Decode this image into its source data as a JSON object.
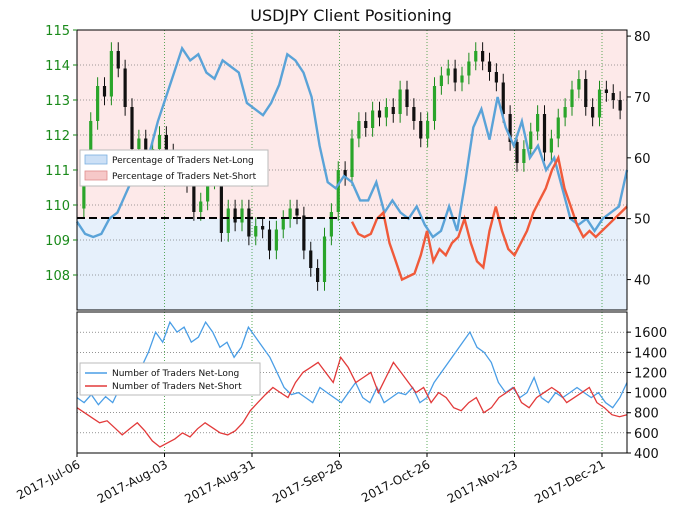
{
  "chart_data": [
    {
      "type": "line",
      "title": "USDJPY Client Positioning",
      "x_dates": [
        "2017-Jul-06",
        "2017-Aug-03",
        "2017-Aug-31",
        "2017-Sep-28",
        "2017-Oct-26",
        "2017-Nov-23",
        "2017-Dec-21"
      ],
      "y_left_ticks": [
        "108",
        "109",
        "110",
        "111",
        "112",
        "113",
        "114",
        "115"
      ],
      "y_left_range": [
        107,
        115
      ],
      "y_right_ticks": [
        "40",
        "50",
        "60",
        "70",
        "80"
      ],
      "y_right_range": [
        35,
        81
      ],
      "reference_line": 50,
      "legend": {
        "position": "center-left",
        "entries": [
          "Percentage of Traders Net-Long",
          "Percentage of Traders Net-Short"
        ]
      },
      "grid": true,
      "price_series": [
        109.9,
        111.2,
        112.4,
        113.4,
        113.1,
        114.4,
        113.9,
        112.8,
        111.6,
        111.9,
        111.1,
        111.6,
        112.0,
        111.5,
        110.8,
        110.9,
        110.6,
        109.8,
        110.1,
        110.7,
        110.8,
        109.2,
        109.9,
        109.5,
        109.9,
        109.1,
        109.4,
        109.3,
        108.7,
        109.3,
        109.6,
        109.9,
        109.7,
        108.7,
        108.2,
        107.8,
        109.1,
        109.8,
        111.0,
        110.8,
        111.9,
        112.4,
        112.2,
        112.7,
        112.5,
        112.8,
        112.6,
        113.3,
        112.8,
        112.4,
        111.9,
        112.4,
        113.4,
        113.7,
        113.9,
        113.5,
        113.7,
        114.1,
        114.4,
        114.1,
        113.8,
        113.5,
        112.6,
        111.8,
        111.2,
        111.6,
        112.1,
        112.6,
        111.5,
        111.9,
        112.5,
        112.8,
        113.3,
        113.6,
        112.8,
        112.5,
        113.3,
        113.2,
        113.0,
        112.7
      ],
      "net_long_pct": [
        49.5,
        47.5,
        47.0,
        47.5,
        50.0,
        51.0,
        54.0,
        57.0,
        58.0,
        61.0,
        66.0,
        70.0,
        74.0,
        78.0,
        76.0,
        77.0,
        74.0,
        73.0,
        76.0,
        75.0,
        74.0,
        69.0,
        68.0,
        67.0,
        69.0,
        72.0,
        77.0,
        76.0,
        74.0,
        70.0,
        62.0,
        56.0,
        55.0,
        57.0,
        56.0,
        53.0,
        53.0,
        56.0,
        51.0,
        53.0,
        51.0,
        50.0,
        52.0,
        49.0,
        47.0,
        48.0,
        52.0,
        48.0,
        56.0,
        65.0,
        68.0,
        63.0,
        70.0,
        65.0,
        62.0,
        66.0,
        60.0,
        62.0,
        58.0,
        60.0,
        55.0,
        50.0,
        49.0,
        50.0,
        48.0,
        50.0,
        51.0,
        52.0,
        58.0
      ],
      "net_short_pct": [
        49.5,
        47.5,
        47.0,
        47.5,
        50.0,
        51.0,
        46.0,
        43.0,
        40.0,
        40.5,
        41.0,
        44.0,
        48.0,
        43.0,
        45.0,
        44.0,
        46.0,
        47.0,
        50.0,
        46.0,
        43.0,
        42.0,
        48.0,
        52.0,
        48.0,
        45.0,
        44.0,
        46.0,
        48.0,
        51.0,
        53.0,
        55.0,
        58.0,
        60.0,
        55.0,
        52.0,
        49.0,
        47.0,
        48.0,
        47.0,
        48.0,
        49.0,
        50.0,
        51.0,
        52.0
      ]
    },
    {
      "type": "line",
      "y_ticks": [
        "400",
        "600",
        "800",
        "1000",
        "1200",
        "1400",
        "1600"
      ],
      "y_range": [
        400,
        1800
      ],
      "legend": {
        "position": "center-left",
        "entries": [
          "Number of Traders Net-Long",
          "Number of Traders Net-Short"
        ]
      },
      "grid": true,
      "series": [
        {
          "name": "Number of Traders Net-Long",
          "color": "#4a9ee6",
          "values": [
            950,
            900,
            980,
            880,
            960,
            900,
            1050,
            1100,
            1200,
            1250,
            1400,
            1600,
            1500,
            1700,
            1600,
            1650,
            1500,
            1550,
            1700,
            1600,
            1450,
            1500,
            1350,
            1450,
            1650,
            1550,
            1450,
            1350,
            1200,
            1050,
            980,
            1000,
            950,
            900,
            1050,
            1000,
            950,
            900,
            1000,
            1100,
            950,
            900,
            1050,
            900,
            950,
            1000,
            980,
            1050,
            900,
            950,
            1100,
            1200,
            1300,
            1400,
            1500,
            1600,
            1450,
            1400,
            1300,
            1100,
            1000,
            1050,
            950,
            1000,
            1150,
            950,
            900,
            1000,
            950,
            1000,
            1050,
            1000,
            950,
            1000,
            900,
            850,
            950,
            1100
          ]
        },
        {
          "name": "Number of Traders Net-Short",
          "color": "#e23a3a",
          "values": [
            850,
            800,
            750,
            700,
            720,
            650,
            580,
            640,
            700,
            620,
            520,
            460,
            500,
            540,
            600,
            560,
            640,
            700,
            650,
            600,
            580,
            620,
            700,
            820,
            900,
            980,
            1050,
            1000,
            950,
            1100,
            1200,
            1250,
            1300,
            1200,
            1100,
            1350,
            1250,
            1100,
            1150,
            1200,
            1000,
            1150,
            1300,
            1200,
            1100,
            1000,
            1050,
            900,
            1000,
            950,
            850,
            820,
            900,
            950,
            800,
            850,
            950,
            1000,
            1050,
            900,
            850,
            950,
            1000,
            1050,
            1000,
            900,
            950,
            1000,
            1050,
            900,
            850,
            780,
            760,
            780
          ]
        }
      ]
    }
  ]
}
